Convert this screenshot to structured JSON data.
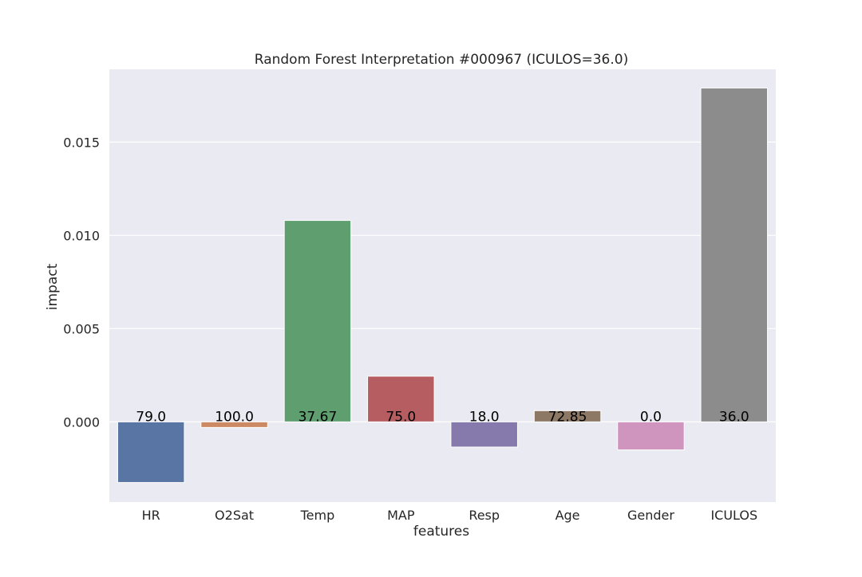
{
  "chart_data": {
    "type": "bar",
    "title": "Random Forest Interpretation #000967 (ICULOS=36.0)",
    "xlabel": "features",
    "ylabel": "impact",
    "categories": [
      "HR",
      "O2Sat",
      "Temp",
      "MAP",
      "Resp",
      "Age",
      "Gender",
      "ICULOS"
    ],
    "values": [
      -0.00325,
      -0.0003,
      0.0108,
      0.00245,
      -0.00135,
      0.0006,
      -0.0015,
      0.0179
    ],
    "data_labels": [
      "79.0",
      "100.0",
      "37.67",
      "75.0",
      "18.0",
      "72.85",
      "0.0",
      "36.0"
    ],
    "ylim": [
      -0.0043,
      0.0189
    ],
    "yticks": [
      0.0,
      0.005,
      0.01,
      0.015
    ],
    "ytick_labels": [
      "0.000",
      "0.005",
      "0.010",
      "0.015"
    ],
    "grid": true,
    "colors": {
      "background": "#EAEAF2",
      "grid": "#FFFFFF",
      "bars": [
        "#5875A4",
        "#CC8963",
        "#5F9E6E",
        "#B55D60",
        "#857AAB",
        "#8D7866",
        "#D095BF",
        "#8C8C8C"
      ],
      "text": "#262626"
    }
  }
}
